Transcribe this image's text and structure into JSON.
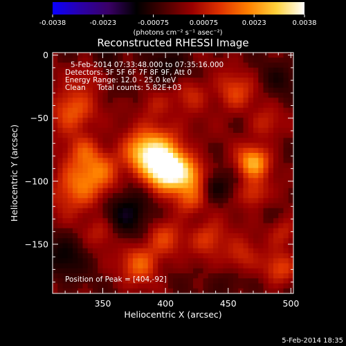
{
  "chart_data": {
    "type": "heatmap",
    "title": "Reconstructed RHESSI Image",
    "xlabel": "Heliocentric X (arcsec)",
    "ylabel": "Heliocentric Y (arcsec)",
    "xlim": [
      310,
      502
    ],
    "ylim": [
      -189,
      2
    ],
    "x_ticks": [
      350,
      400,
      450,
      500
    ],
    "y_ticks": [
      0,
      -50,
      -100,
      -150
    ],
    "annotations": [
      "5-Feb-2014 07:33:48.000 to 07:35:16.000",
      "Detectors: 3F 5F 6F 7F 8F 9F, Att 0",
      "Energy Range: 12.0 - 25.0 keV",
      "Clean     Total counts: 5.82E+03"
    ],
    "peak_label": "Position of Peak = [404,-92]",
    "peak": [
      404,
      -92
    ],
    "colorbar": {
      "ticks": [
        "-0.0038",
        "-0.0023",
        "-0.00075",
        "0.00075",
        "0.0023",
        "0.0038"
      ],
      "range": [
        -0.0038,
        0.0038
      ],
      "unit_label": "(photons cm⁻² s⁻¹ asec⁻²)",
      "colormap": [
        "#0a00ff",
        "#2a00a8",
        "#3a0066",
        "#000000",
        "#4a0000",
        "#9a0000",
        "#e03300",
        "#ff8000",
        "#ffd23c",
        "#ffffff"
      ]
    },
    "sources": [
      {
        "x": 400,
        "y": -92,
        "amp": 1.0,
        "sigma": 11
      },
      {
        "x": 395,
        "y": -75,
        "amp": 0.55,
        "sigma": 14
      },
      {
        "x": 380,
        "y": -78,
        "amp": 0.45,
        "sigma": 10
      },
      {
        "x": 420,
        "y": -95,
        "amp": 0.45,
        "sigma": 10
      },
      {
        "x": 418,
        "y": -115,
        "amp": 0.35,
        "sigma": 9
      },
      {
        "x": 325,
        "y": -45,
        "amp": 0.45,
        "sigma": 12
      },
      {
        "x": 330,
        "y": -105,
        "amp": 0.5,
        "sigma": 14
      },
      {
        "x": 350,
        "y": -90,
        "amp": 0.35,
        "sigma": 11
      },
      {
        "x": 335,
        "y": -75,
        "amp": 0.3,
        "sigma": 9
      },
      {
        "x": 470,
        "y": -85,
        "amp": 0.65,
        "sigma": 9
      },
      {
        "x": 470,
        "y": -110,
        "amp": 0.35,
        "sigma": 8
      },
      {
        "x": 455,
        "y": -30,
        "amp": 0.35,
        "sigma": 11
      },
      {
        "x": 480,
        "y": -55,
        "amp": 0.25,
        "sigma": 9
      },
      {
        "x": 380,
        "y": -165,
        "amp": 0.45,
        "sigma": 11
      },
      {
        "x": 400,
        "y": -145,
        "amp": 0.3,
        "sigma": 10
      },
      {
        "x": 435,
        "y": -145,
        "amp": 0.35,
        "sigma": 10
      },
      {
        "x": 460,
        "y": -160,
        "amp": 0.3,
        "sigma": 10
      },
      {
        "x": 350,
        "y": -140,
        "amp": 0.25,
        "sigma": 9
      },
      {
        "x": 420,
        "y": -30,
        "amp": 0.25,
        "sigma": 10
      },
      {
        "x": 490,
        "y": -170,
        "amp": 0.35,
        "sigma": 9
      },
      {
        "x": 495,
        "y": -140,
        "amp": 0.25,
        "sigma": 8
      },
      {
        "x": 390,
        "y": -40,
        "amp": 0.2,
        "sigma": 9
      },
      {
        "x": 340,
        "y": -15,
        "amp": 0.2,
        "sigma": 9
      },
      {
        "x": 440,
        "y": -105,
        "amp": -0.3,
        "sigma": 8
      },
      {
        "x": 370,
        "y": -125,
        "amp": -0.45,
        "sigma": 12
      },
      {
        "x": 320,
        "y": -160,
        "amp": -0.3,
        "sigma": 12
      },
      {
        "x": 400,
        "y": -10,
        "amp": -0.25,
        "sigma": 12
      },
      {
        "x": 355,
        "y": 0,
        "amp": -0.2,
        "sigma": 9
      },
      {
        "x": 490,
        "y": -20,
        "amp": -0.2,
        "sigma": 10
      },
      {
        "x": 450,
        "y": -180,
        "amp": -0.15,
        "sigma": 10
      }
    ]
  },
  "footer": {
    "timestamp": "5-Feb-2014 18:35"
  }
}
